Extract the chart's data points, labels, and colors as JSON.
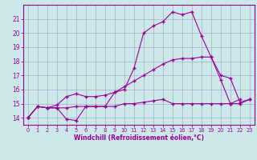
{
  "xlabel": "Windchill (Refroidissement éolien,°C)",
  "bg_color": "#cce8e8",
  "grid_color": "#aaaacc",
  "line_color": "#990099",
  "xlim": [
    -0.5,
    23.5
  ],
  "ylim": [
    13.5,
    22.0
  ],
  "xticks": [
    0,
    1,
    2,
    3,
    4,
    5,
    6,
    7,
    8,
    9,
    10,
    11,
    12,
    13,
    14,
    15,
    16,
    17,
    18,
    19,
    20,
    21,
    22,
    23
  ],
  "yticks": [
    14,
    15,
    16,
    17,
    18,
    19,
    20,
    21
  ],
  "line1_x": [
    0,
    1,
    2,
    3,
    4,
    5,
    6,
    7,
    8,
    9,
    10,
    11,
    12,
    13,
    14,
    15,
    16,
    17,
    18,
    19,
    20,
    21,
    22
  ],
  "line1_y": [
    14.0,
    14.8,
    14.7,
    14.7,
    13.9,
    13.8,
    14.8,
    14.8,
    14.8,
    15.8,
    16.0,
    17.5,
    20.0,
    20.5,
    20.8,
    21.5,
    21.3,
    21.5,
    19.8,
    18.3,
    16.7,
    15.0,
    15.3
  ],
  "line2_x": [
    0,
    1,
    2,
    3,
    4,
    5,
    6,
    7,
    8,
    9,
    10,
    11,
    12,
    13,
    14,
    15,
    16,
    17,
    18,
    19,
    20,
    21,
    22,
    23
  ],
  "line2_y": [
    14.0,
    14.8,
    14.7,
    14.7,
    14.7,
    14.8,
    14.8,
    14.8,
    14.8,
    14.8,
    15.0,
    15.0,
    15.1,
    15.2,
    15.3,
    15.0,
    15.0,
    15.0,
    15.0,
    15.0,
    15.0,
    15.0,
    15.0,
    15.3
  ],
  "line3_x": [
    0,
    1,
    2,
    3,
    4,
    5,
    6,
    7,
    8,
    9,
    10,
    11,
    12,
    13,
    14,
    15,
    16,
    17,
    18,
    19,
    20,
    21,
    22,
    23
  ],
  "line3_y": [
    14.0,
    14.8,
    14.7,
    14.9,
    15.5,
    15.7,
    15.5,
    15.5,
    15.6,
    15.8,
    16.2,
    16.6,
    17.0,
    17.4,
    17.8,
    18.1,
    18.2,
    18.2,
    18.3,
    18.3,
    17.0,
    16.8,
    15.1,
    15.3
  ]
}
